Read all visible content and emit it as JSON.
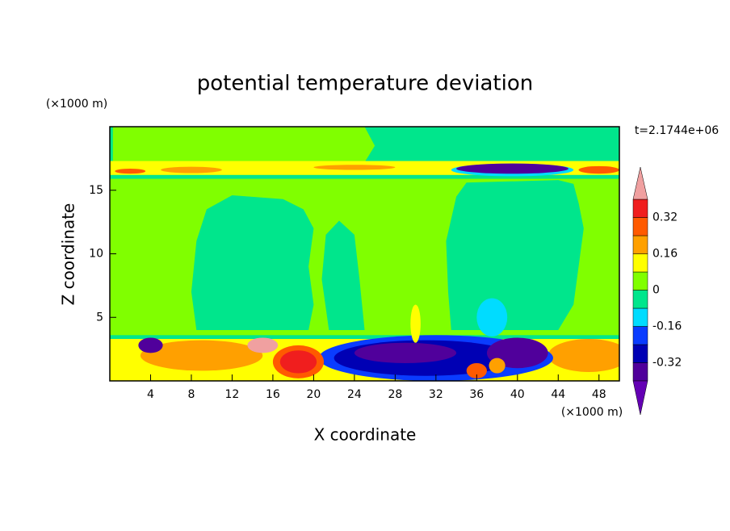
{
  "chart_data": {
    "type": "contour",
    "title": "potential temperature deviation",
    "xlabel": "X coordinate",
    "ylabel": "Z coordinate",
    "x_unit": "(×1000 m)",
    "y_unit": "(×1000 m)",
    "time_label": "t=2.1744e+06",
    "xlim": [
      0,
      50
    ],
    "ylim": [
      0,
      20
    ],
    "xticks": [
      4,
      8,
      12,
      16,
      20,
      24,
      28,
      32,
      36,
      40,
      44,
      48
    ],
    "yticks": [
      5,
      10,
      15
    ],
    "levels": [
      -0.4,
      -0.32,
      -0.24,
      -0.16,
      -0.08,
      0,
      0.08,
      0.16,
      0.24,
      0.32,
      0.4
    ],
    "colors": [
      "#6400b4",
      "#50009b",
      "#0000b4",
      "#0a3cff",
      "#00dcff",
      "#00e68c",
      "#80ff00",
      "#ffff00",
      "#ffa000",
      "#ff5a00",
      "#f01e1e",
      "#f0a0a0"
    ],
    "colorbar_ticks": [
      0.32,
      0.16,
      0,
      -0.16,
      -0.32
    ]
  }
}
